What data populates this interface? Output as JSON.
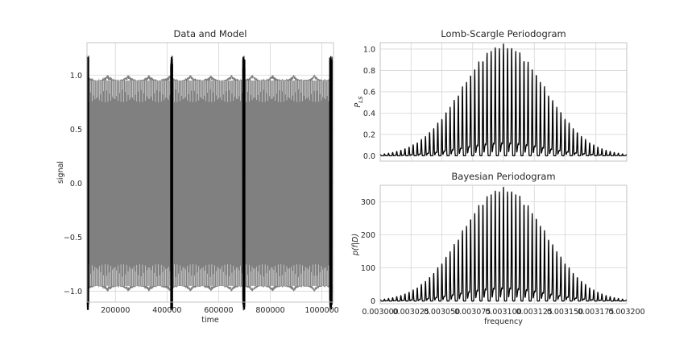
{
  "chart_data": [
    {
      "type": "line",
      "title": "Data and Model",
      "xlabel": "time",
      "ylabel": "signal",
      "xlim": [
        90000,
        1045000
      ],
      "ylim": [
        -1.1,
        1.3
      ],
      "xticks": [
        200000,
        400000,
        600000,
        800000,
        1000000
      ],
      "xtick_labels": [
        "200000",
        "400000",
        "600000",
        "800000",
        "1000000"
      ],
      "yticks": [
        -1.0,
        -0.5,
        0.0,
        0.5,
        1.0
      ],
      "ytick_labels": [
        "−1.0",
        "−0.5",
        "0.0",
        "0.5",
        "1.0"
      ],
      "grid": true,
      "series": [
        {
          "role": "model",
          "color": "#808080",
          "x_range": [
            90000,
            1040000
          ],
          "amplitude": 1.0,
          "envelope_dip": 0.05,
          "envelope_period": 80000
        },
        {
          "role": "data",
          "color": "#000000",
          "segments": [
            [
              90000,
              97000
            ],
            [
              414000,
              422000
            ],
            [
              693000,
              702000
            ],
            [
              1030000,
              1040000
            ]
          ],
          "amplitude": 1.18
        }
      ]
    },
    {
      "type": "line",
      "title": "Lomb-Scargle Periodogram",
      "xlabel": "",
      "ylabel": "P_LS",
      "xlim": [
        0.003,
        0.0032
      ],
      "ylim": [
        -0.05,
        1.06
      ],
      "yticks": [
        0.0,
        0.2,
        0.4,
        0.6,
        0.8,
        1.0
      ],
      "ytick_labels": [
        "0.0",
        "0.2",
        "0.4",
        "0.6",
        "0.8",
        "1.0"
      ],
      "grid": true,
      "color": "#000000",
      "center": 0.0031,
      "peak_value": 1.02,
      "envelope_sigma": 3.4e-05,
      "line_spacing": 3.33e-06
    },
    {
      "type": "line",
      "title": "Bayesian Periodogram",
      "xlabel": "frequency",
      "ylabel": "p(f|D)",
      "xlim": [
        0.003,
        0.0032
      ],
      "ylim": [
        -8,
        350
      ],
      "xticks": [
        0.003,
        0.003025,
        0.00305,
        0.003075,
        0.0031,
        0.003125,
        0.00315,
        0.003175,
        0.0032
      ],
      "xtick_labels": [
        "0.003000",
        "0.003025",
        "0.003050",
        "0.003075",
        "0.003100",
        "0.003125",
        "0.003150",
        "0.003175",
        "0.003200"
      ],
      "yticks": [
        0,
        100,
        200,
        300
      ],
      "ytick_labels": [
        "0",
        "100",
        "200",
        "300"
      ],
      "grid": true,
      "color": "#000000",
      "center": 0.0031,
      "peak_value": 335,
      "envelope_sigma": 3.4e-05,
      "line_spacing": 3.33e-06
    }
  ]
}
